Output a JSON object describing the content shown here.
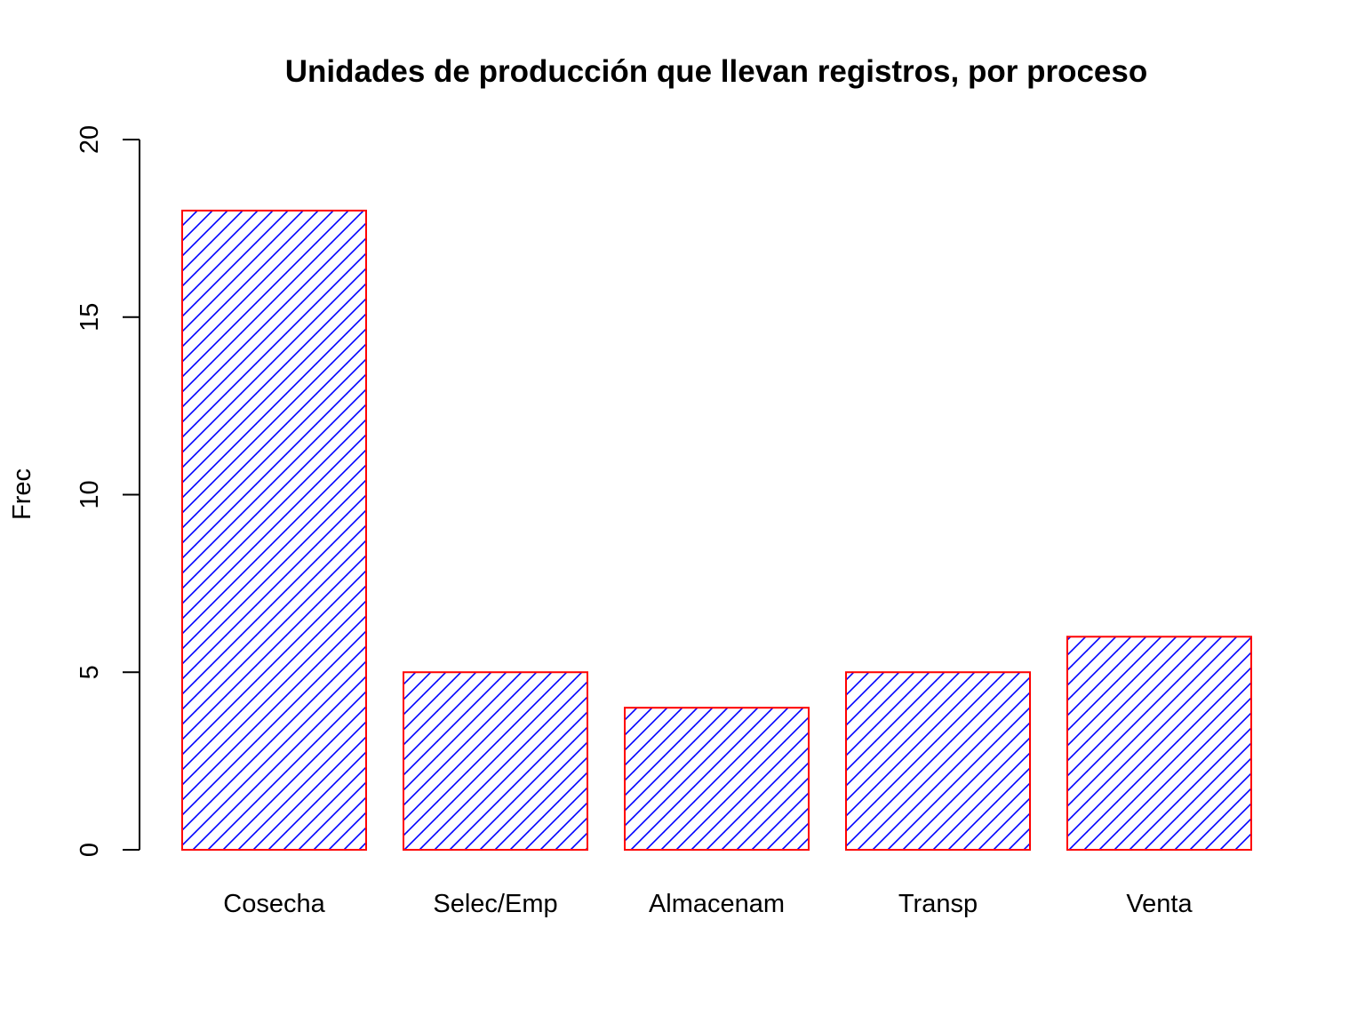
{
  "chart_data": {
    "type": "bar",
    "title": "Unidades de producción que llevan registros, por proceso",
    "xlabel": "",
    "ylabel": "Frec",
    "categories": [
      "Cosecha",
      "Selec/Emp",
      "Almacenam",
      "Transp",
      "Venta"
    ],
    "values": [
      18,
      5,
      4,
      5,
      6
    ],
    "ylim": [
      0,
      20
    ],
    "yticks": [
      "0",
      "5",
      "10",
      "15",
      "20"
    ],
    "grid": false,
    "legend": "none",
    "bar_fill": "diagonal-hatch",
    "hatch_color": "#0000ff",
    "border_color": "#ff0000"
  }
}
